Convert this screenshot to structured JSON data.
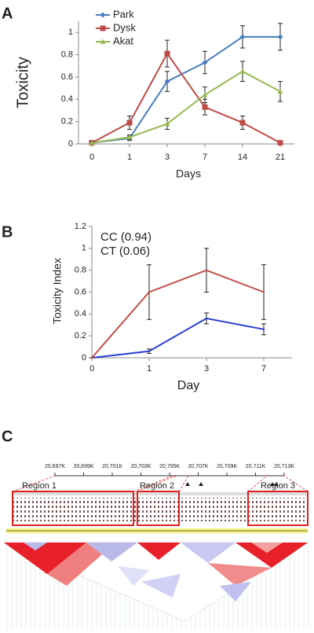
{
  "chart_data": [
    {
      "type": "line",
      "label": "A",
      "categories": [
        "0",
        "1",
        "3",
        "7",
        "14",
        "21"
      ],
      "x_label": "Days",
      "y_label": "Toxicity",
      "ylim": [
        0,
        1.1
      ],
      "yticks": [
        0,
        0.2,
        0.4,
        0.6,
        0.8,
        1
      ],
      "legend": "top-left",
      "series": [
        {
          "name": "Park",
          "color": "#4a7ebb",
          "marker": "diamond",
          "values": [
            0.01,
            0.05,
            0.56,
            0.73,
            0.96,
            0.96
          ],
          "errors": [
            0.01,
            0.02,
            0.09,
            0.1,
            0.1,
            0.12
          ]
        },
        {
          "name": "Dysk",
          "color": "#be4b48",
          "marker": "square",
          "values": [
            0.01,
            0.19,
            0.81,
            0.33,
            0.19,
            0.01
          ],
          "errors": [
            0.01,
            0.06,
            0.12,
            0.07,
            0.06,
            0.01
          ]
        },
        {
          "name": "Akat",
          "color": "#98b954",
          "marker": "triangle",
          "values": [
            0.01,
            0.06,
            0.18,
            0.44,
            0.65,
            0.47
          ],
          "errors": [
            0.01,
            0.02,
            0.05,
            0.07,
            0.09,
            0.09
          ]
        }
      ]
    },
    {
      "type": "line",
      "label": "B",
      "categories": [
        "0",
        "1",
        "3",
        "7"
      ],
      "x_label": "Day",
      "y_label": "Toxicity Index",
      "ylim": [
        0,
        1.2
      ],
      "yticks": [
        0,
        0.2,
        0.4,
        0.6,
        0.8,
        1,
        1.2
      ],
      "legend": "top-left",
      "series": [
        {
          "name": "CC (0.94)",
          "color": "#2a3fcf",
          "values": [
            0,
            0.06,
            0.36,
            0.26
          ],
          "errors": [
            0,
            0.02,
            0.05,
            0.05
          ]
        },
        {
          "name": "CT (0.06)",
          "color": "#c0504d",
          "values": [
            0,
            0.6,
            0.8,
            0.6
          ],
          "errors": [
            0,
            0.25,
            0.2,
            0.25
          ]
        }
      ]
    }
  ],
  "diagram": {
    "label": "C",
    "scale_labels": [
      "20,697K",
      "20,699K",
      "20,701K",
      "20,703K",
      "20,705K",
      "20,707K",
      "20,709K",
      "20,711K",
      "20,713K"
    ],
    "regions": [
      "Region 1",
      "Region 2",
      "Region 3"
    ]
  }
}
